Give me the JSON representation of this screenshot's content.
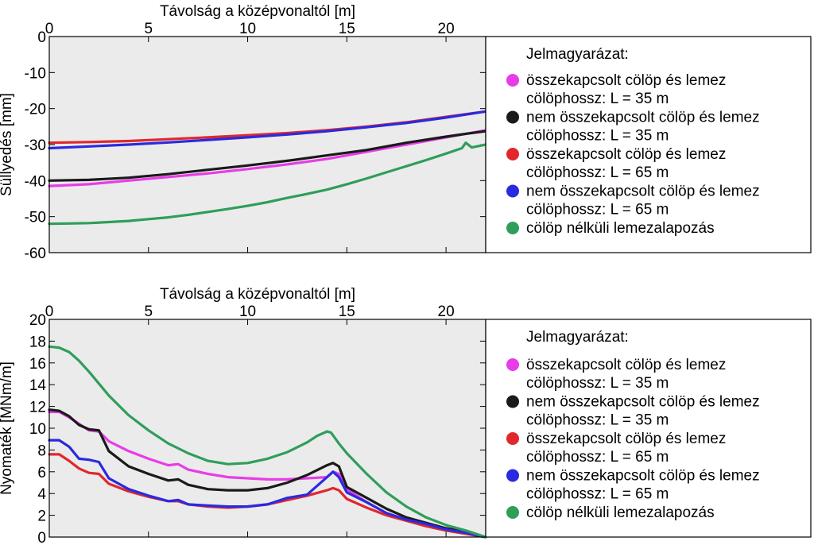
{
  "colors": {
    "magenta": "#e83ce8",
    "black": "#1a1a1a",
    "red": "#e0282c",
    "blue": "#2a2ae0",
    "green": "#2e9e5a",
    "plot_bg": "#ebebeb"
  },
  "chart_data": [
    {
      "type": "line",
      "xlabel": "Távolság a középvonaltól [m]",
      "ylabel": "Süllyedés [mm]",
      "xlim": [
        0,
        22
      ],
      "ylim": [
        -60,
        0
      ],
      "xticks": [
        0,
        5,
        10,
        15,
        20
      ],
      "yticks": [
        0,
        -10,
        -20,
        -30,
        -40,
        -50,
        -60
      ],
      "x_axis_position": "top",
      "legend": {
        "title": "Jelmagyarázat:",
        "placement": "right",
        "entries": [
          {
            "line1": "összekapcsolt cölöp és lemez",
            "line2": "cölöphossz: L = 35 m",
            "color": "magenta"
          },
          {
            "line1": "nem összekapcsolt cölöp és lemez",
            "line2": "cölöphossz: L = 35 m",
            "color": "black"
          },
          {
            "line1": "összekapcsolt cölöp és lemez",
            "line2": "cölöphossz: L = 65 m",
            "color": "red"
          },
          {
            "line1": "nem összekapcsolt cölöp és lemez",
            "line2": "cölöphossz: L = 65 m",
            "color": "blue"
          },
          {
            "line1": "cölöp nélküli lemezalapozás",
            "line2": "",
            "color": "green"
          }
        ]
      },
      "series": [
        {
          "color": "magenta",
          "x": [
            0,
            2,
            4,
            6,
            8,
            10,
            12,
            14,
            16,
            18,
            20,
            21,
            22
          ],
          "y": [
            -41.5,
            -41,
            -40,
            -39,
            -38,
            -36.8,
            -35.5,
            -34,
            -32,
            -30,
            -28,
            -27,
            -26
          ]
        },
        {
          "color": "black",
          "x": [
            0,
            2,
            4,
            6,
            8,
            10,
            12,
            14,
            16,
            18,
            20,
            21,
            22
          ],
          "y": [
            -40,
            -39.8,
            -39.2,
            -38.2,
            -37,
            -35.8,
            -34.5,
            -33,
            -31.5,
            -29.5,
            -27.8,
            -27,
            -26.3
          ]
        },
        {
          "color": "red",
          "x": [
            0,
            2,
            4,
            6,
            8,
            10,
            12,
            14,
            16,
            18,
            20,
            22
          ],
          "y": [
            -29.5,
            -29.3,
            -29,
            -28.5,
            -28,
            -27.4,
            -26.8,
            -26,
            -25,
            -23.8,
            -22.3,
            -20.8
          ]
        },
        {
          "color": "blue",
          "x": [
            0,
            2,
            4,
            6,
            8,
            10,
            12,
            14,
            16,
            18,
            20,
            22
          ],
          "y": [
            -31,
            -30.5,
            -30,
            -29.4,
            -28.7,
            -28,
            -27.2,
            -26.3,
            -25.2,
            -24,
            -22.5,
            -20.8
          ]
        },
        {
          "color": "green",
          "x": [
            0,
            1,
            2,
            3,
            4,
            5,
            6,
            7,
            8,
            9,
            10,
            11,
            12,
            13,
            14,
            15,
            16,
            17,
            18,
            19,
            20,
            20.8,
            21,
            21.3,
            22
          ],
          "y": [
            -52,
            -51.9,
            -51.8,
            -51.5,
            -51.2,
            -50.7,
            -50.2,
            -49.5,
            -48.7,
            -47.9,
            -47,
            -46,
            -44.8,
            -43.7,
            -42.5,
            -41,
            -39.4,
            -37.7,
            -36,
            -34.3,
            -32.5,
            -31,
            -29.5,
            -30.8,
            -30
          ]
        }
      ]
    },
    {
      "type": "line",
      "xlabel": "Távolság a középvonaltól [m]",
      "ylabel": "Nyomaték  [MNm/m]",
      "xlim": [
        0,
        22
      ],
      "ylim": [
        0,
        20
      ],
      "xticks": [
        0,
        5,
        10,
        15,
        20
      ],
      "yticks": [
        0,
        2,
        4,
        6,
        8,
        10,
        12,
        14,
        16,
        18,
        20
      ],
      "x_axis_position": "top",
      "legend": {
        "title": "Jelmagyarázat:",
        "placement": "right",
        "entries": [
          {
            "line1": "összekapcsolt cölöp és lemez",
            "line2": "cölöphossz: L = 35 m",
            "color": "magenta"
          },
          {
            "line1": "nem összekapcsolt cölöp és lemez",
            "line2": "cölöphossz: L = 35 m",
            "color": "black"
          },
          {
            "line1": "összekapcsolt cölöp és lemez",
            "line2": "cölöphossz: L = 65 m",
            "color": "red"
          },
          {
            "line1": "nem összekapcsolt cölöp és lemez",
            "line2": "cölöphossz: L = 65 m",
            "color": "blue"
          },
          {
            "line1": "cölöp nélküli lemezalapozás",
            "line2": "",
            "color": "green"
          }
        ]
      },
      "series": [
        {
          "color": "magenta",
          "x": [
            0,
            0.5,
            1,
            1.5,
            2,
            2.5,
            3,
            4,
            5,
            6,
            6.5,
            7,
            8,
            9,
            10,
            11,
            12,
            13,
            14,
            14.3,
            14.6,
            15,
            16,
            17,
            18,
            19,
            20,
            21,
            22
          ],
          "y": [
            11.5,
            11.5,
            11,
            10.4,
            9.8,
            9.7,
            8.8,
            7.9,
            7.2,
            6.6,
            6.7,
            6.2,
            5.8,
            5.5,
            5.4,
            5.3,
            5.3,
            5.4,
            5.5,
            6.0,
            5.8,
            4.4,
            3.2,
            2.2,
            1.6,
            1.1,
            0.7,
            0.4,
            0
          ]
        },
        {
          "color": "black",
          "x": [
            0,
            0.5,
            1,
            1.5,
            2,
            2.5,
            3,
            4,
            5,
            6,
            6.5,
            7,
            8,
            9,
            10,
            11,
            12,
            13,
            14,
            14.3,
            14.6,
            15,
            16,
            17,
            18,
            19,
            20,
            21,
            22
          ],
          "y": [
            11.7,
            11.6,
            11.1,
            10.3,
            9.9,
            9.8,
            7.9,
            6.5,
            5.8,
            5.2,
            5.3,
            4.8,
            4.4,
            4.3,
            4.3,
            4.5,
            5.0,
            5.7,
            6.6,
            6.8,
            6.5,
            4.6,
            3.6,
            2.6,
            1.8,
            1.3,
            0.8,
            0.5,
            0
          ]
        },
        {
          "color": "red",
          "x": [
            0,
            0.5,
            1,
            1.5,
            2,
            2.5,
            3,
            4,
            5,
            6,
            6.5,
            7,
            8,
            9,
            10,
            11,
            12,
            13,
            14,
            14.3,
            14.6,
            15,
            16,
            17,
            18,
            19,
            20,
            21,
            22
          ],
          "y": [
            7.6,
            7.6,
            7.0,
            6.3,
            5.9,
            5.8,
            4.9,
            4.2,
            3.7,
            3.3,
            3.3,
            3.0,
            2.8,
            2.7,
            2.8,
            3.0,
            3.4,
            3.8,
            4.3,
            4.5,
            4.3,
            3.5,
            2.7,
            2.0,
            1.5,
            1.0,
            0.6,
            0.3,
            0
          ]
        },
        {
          "color": "blue",
          "x": [
            0,
            0.5,
            1,
            1.5,
            2,
            2.5,
            3,
            4,
            5,
            6,
            6.5,
            7,
            8,
            9,
            10,
            11,
            12,
            13,
            14,
            14.3,
            14.6,
            15,
            16,
            17,
            18,
            19,
            20,
            21,
            22
          ],
          "y": [
            8.9,
            8.9,
            8.3,
            7.2,
            7.1,
            6.9,
            5.4,
            4.4,
            3.8,
            3.3,
            3.4,
            3.0,
            2.9,
            2.8,
            2.8,
            3.0,
            3.6,
            3.9,
            5.5,
            6.0,
            5.5,
            4.1,
            3.2,
            2.2,
            1.6,
            1.2,
            0.7,
            0.4,
            0
          ]
        },
        {
          "color": "green",
          "x": [
            0,
            0.5,
            1,
            1.5,
            2,
            2.5,
            3,
            3.5,
            4,
            5,
            6,
            7,
            8,
            9,
            10,
            11,
            12,
            13,
            13.5,
            14,
            14.2,
            14.6,
            15,
            16,
            17,
            18,
            19,
            20,
            21,
            22
          ],
          "y": [
            17.5,
            17.4,
            17.0,
            16.2,
            15.2,
            14.1,
            13.0,
            12.1,
            11.2,
            9.8,
            8.6,
            7.7,
            7.0,
            6.7,
            6.8,
            7.2,
            7.8,
            8.7,
            9.3,
            9.7,
            9.6,
            8.6,
            7.7,
            5.8,
            4.1,
            2.8,
            1.8,
            1.1,
            0.6,
            0
          ]
        }
      ]
    }
  ]
}
